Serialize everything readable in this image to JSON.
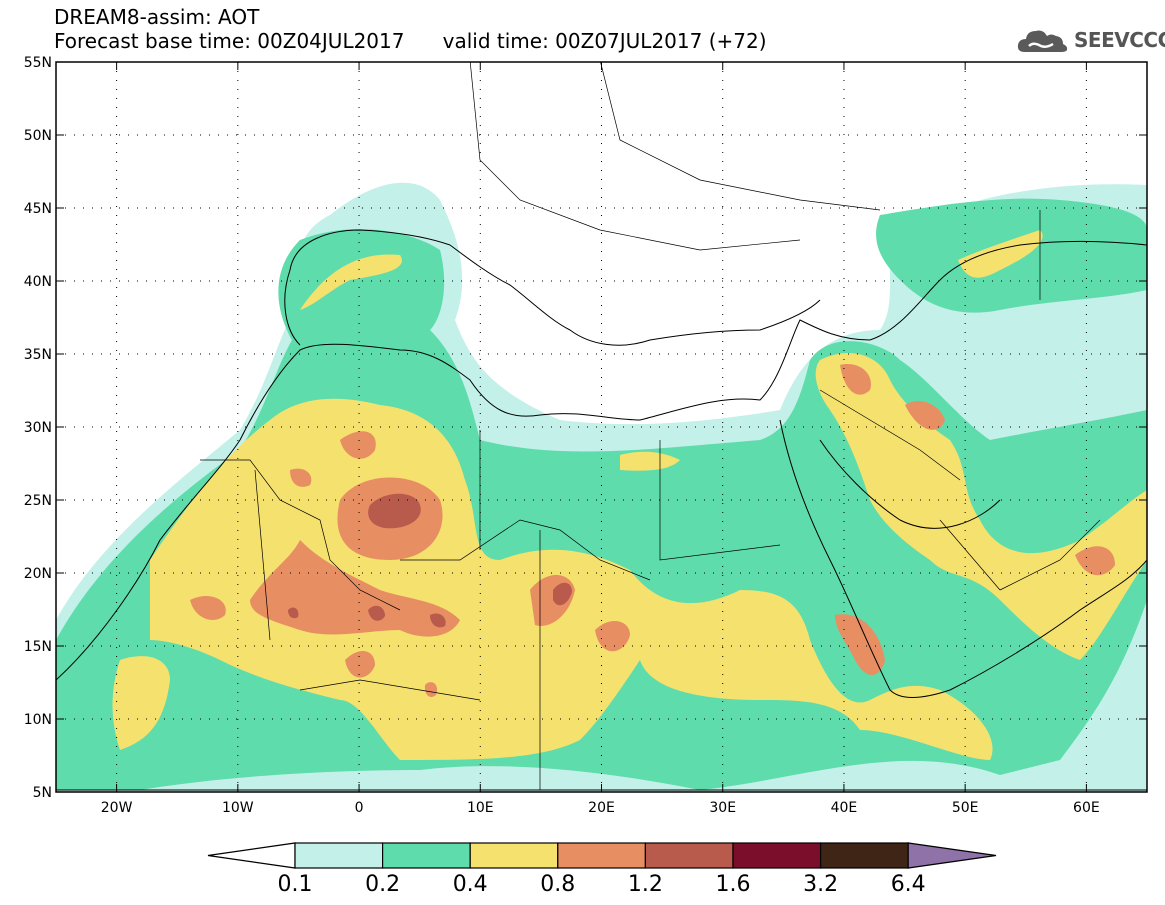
{
  "header": {
    "title_line_1": "DREAM8-assim: AOT",
    "title_line_2": "Forecast base time: 00Z04JUL2017      valid time: 00Z07JUL2017 (+72)",
    "logo_text": "SEEVCCC"
  },
  "map": {
    "extent": {
      "lon": [
        -25,
        65
      ],
      "lat": [
        5,
        55
      ]
    },
    "lat_ticks": [
      {
        "value": 55,
        "label": "55N"
      },
      {
        "value": 50,
        "label": "50N"
      },
      {
        "value": 45,
        "label": "45N"
      },
      {
        "value": 40,
        "label": "40N"
      },
      {
        "value": 35,
        "label": "35N"
      },
      {
        "value": 30,
        "label": "30N"
      },
      {
        "value": 25,
        "label": "25N"
      },
      {
        "value": 20,
        "label": "20N"
      },
      {
        "value": 15,
        "label": "15N"
      },
      {
        "value": 10,
        "label": "10N"
      },
      {
        "value": 5,
        "label": "5N"
      }
    ],
    "lon_ticks": [
      {
        "value": -20,
        "label": "20W"
      },
      {
        "value": -10,
        "label": "10W"
      },
      {
        "value": 0,
        "label": "0"
      },
      {
        "value": 10,
        "label": "10E"
      },
      {
        "value": 20,
        "label": "20E"
      },
      {
        "value": 30,
        "label": "30E"
      },
      {
        "value": 40,
        "label": "40E"
      },
      {
        "value": 50,
        "label": "50E"
      },
      {
        "value": 60,
        "label": "60E"
      }
    ]
  },
  "colorbar": {
    "levels": [
      "0.1",
      "0.2",
      "0.4",
      "0.8",
      "1.2",
      "1.6",
      "3.2",
      "6.4"
    ],
    "colors": [
      "#c3f0e8",
      "#5edcac",
      "#f5e16e",
      "#e88e63",
      "#b85a4c",
      "#7b0e2a",
      "#3e2516",
      "#8f73a8"
    ]
  }
}
